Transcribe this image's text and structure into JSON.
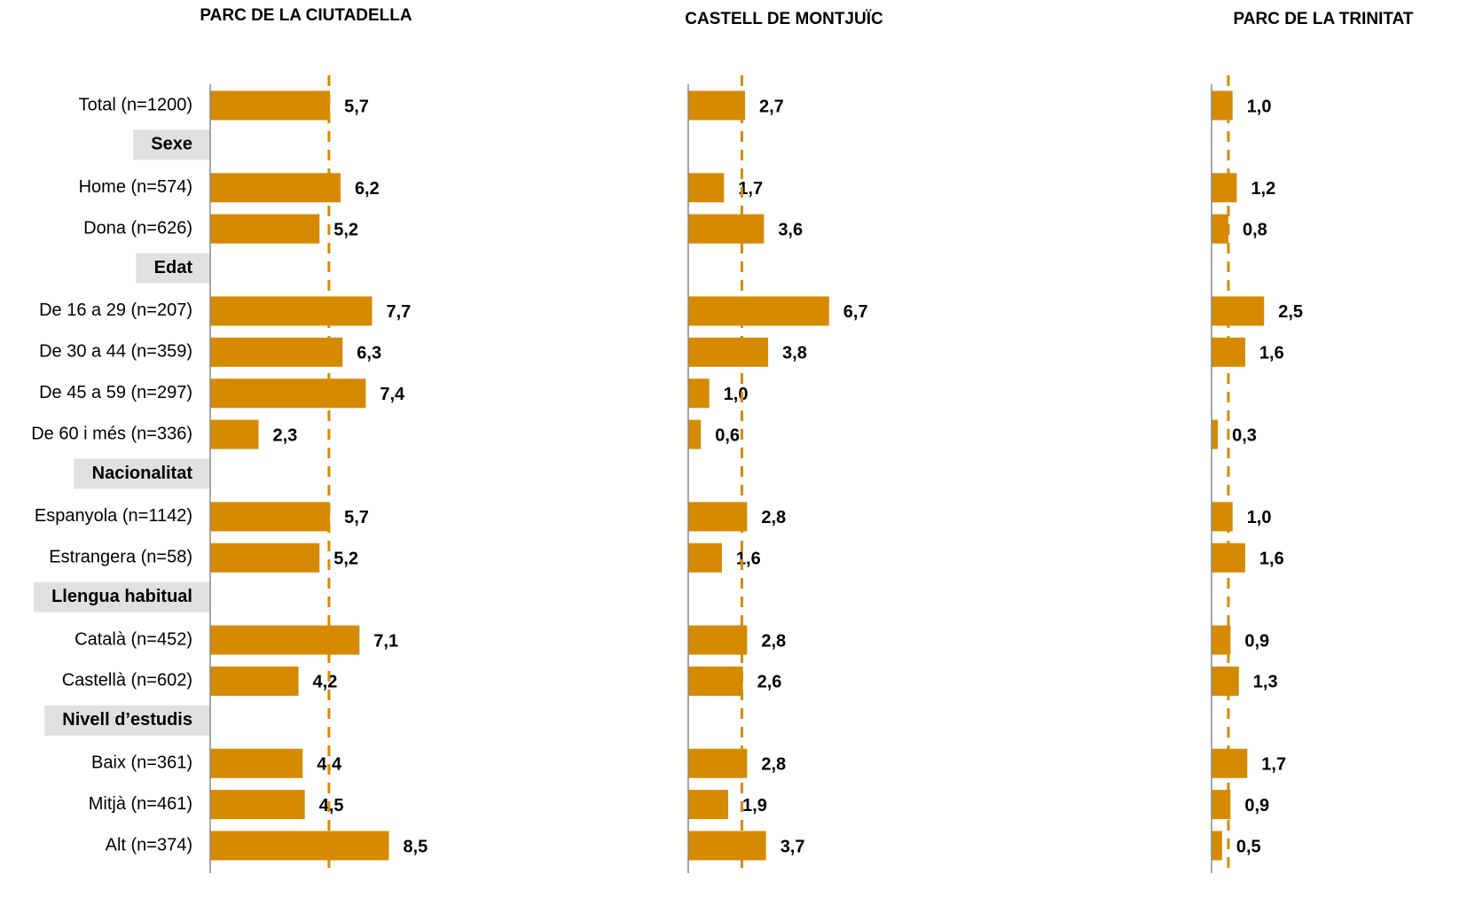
{
  "categories": [
    "Total (n=1200)",
    {
      "header": "Sexe"
    },
    "Home (n=574)",
    "Dona (n=626)",
    {
      "header": "Edat"
    },
    "De 16 a 29 (n=207)",
    "De 30 a 44 (n=359)",
    "De 45 a 59 (n=297)",
    "De 60 i més (n=336)",
    {
      "header": "Nacionalitat"
    },
    "Espanyola (n=1142)",
    "Estrangera (n=58)",
    {
      "header": "Llengua habitual"
    },
    "Català (n=452)",
    "Castellà (n=602)",
    {
      "header": "Nivell d’estudis"
    },
    "Baix (n=361)",
    "Mitjà (n=461)",
    "Alt (n=374)"
  ],
  "chart_data": [
    {
      "type": "hbar",
      "title": "PARC DE LA CIUTADELLA",
      "color": "#d68a00",
      "xlim": [
        0,
        10
      ],
      "reference_line": 5.65,
      "values": [
        5.7,
        null,
        6.2,
        5.2,
        null,
        7.7,
        6.3,
        7.4,
        2.3,
        null,
        5.7,
        5.2,
        null,
        7.1,
        4.2,
        null,
        4.4,
        4.5,
        8.5
      ],
      "value_labels": [
        "5,7",
        null,
        "6,2",
        "5,2",
        null,
        "7,7",
        "6,3",
        "7,4",
        "2,3",
        null,
        "5,7",
        "5,2",
        null,
        "7,1",
        "4,2",
        null,
        "4,4",
        "4,5",
        "8,5"
      ]
    },
    {
      "type": "hbar",
      "title": "CASTELL DE MONTJUÏC",
      "color": "#d68a00",
      "xlim": [
        0,
        10
      ],
      "reference_line": 2.55,
      "values": [
        2.7,
        null,
        1.7,
        3.6,
        null,
        6.7,
        3.8,
        1.0,
        0.6,
        null,
        2.8,
        1.6,
        null,
        2.8,
        2.6,
        null,
        2.8,
        1.9,
        3.7
      ],
      "value_labels": [
        "2,7",
        null,
        "1,7",
        "3,6",
        null,
        "6,7",
        "3,8",
        "1,0",
        "0,6",
        null,
        "2,8",
        "1,6",
        null,
        "2,8",
        "2,6",
        null,
        "2,8",
        "1,9",
        "3,7"
      ]
    },
    {
      "type": "hbar",
      "title": "PARC DE LA TRINITAT",
      "color": "#d68a00",
      "xlim": [
        0,
        10
      ],
      "reference_line": 0.8,
      "values": [
        1.0,
        null,
        1.2,
        0.8,
        null,
        2.5,
        1.6,
        null,
        0.3,
        null,
        1.0,
        1.6,
        null,
        0.9,
        1.3,
        null,
        1.7,
        0.9,
        0.5
      ],
      "value_labels": [
        "1,0",
        null,
        "1,2",
        "0,8",
        null,
        "2,5",
        "1,6",
        null,
        "0,3",
        null,
        "1,0",
        "1,6",
        null,
        "0,9",
        "1,3",
        null,
        "1,7",
        "0,9",
        "0,5"
      ]
    }
  ]
}
